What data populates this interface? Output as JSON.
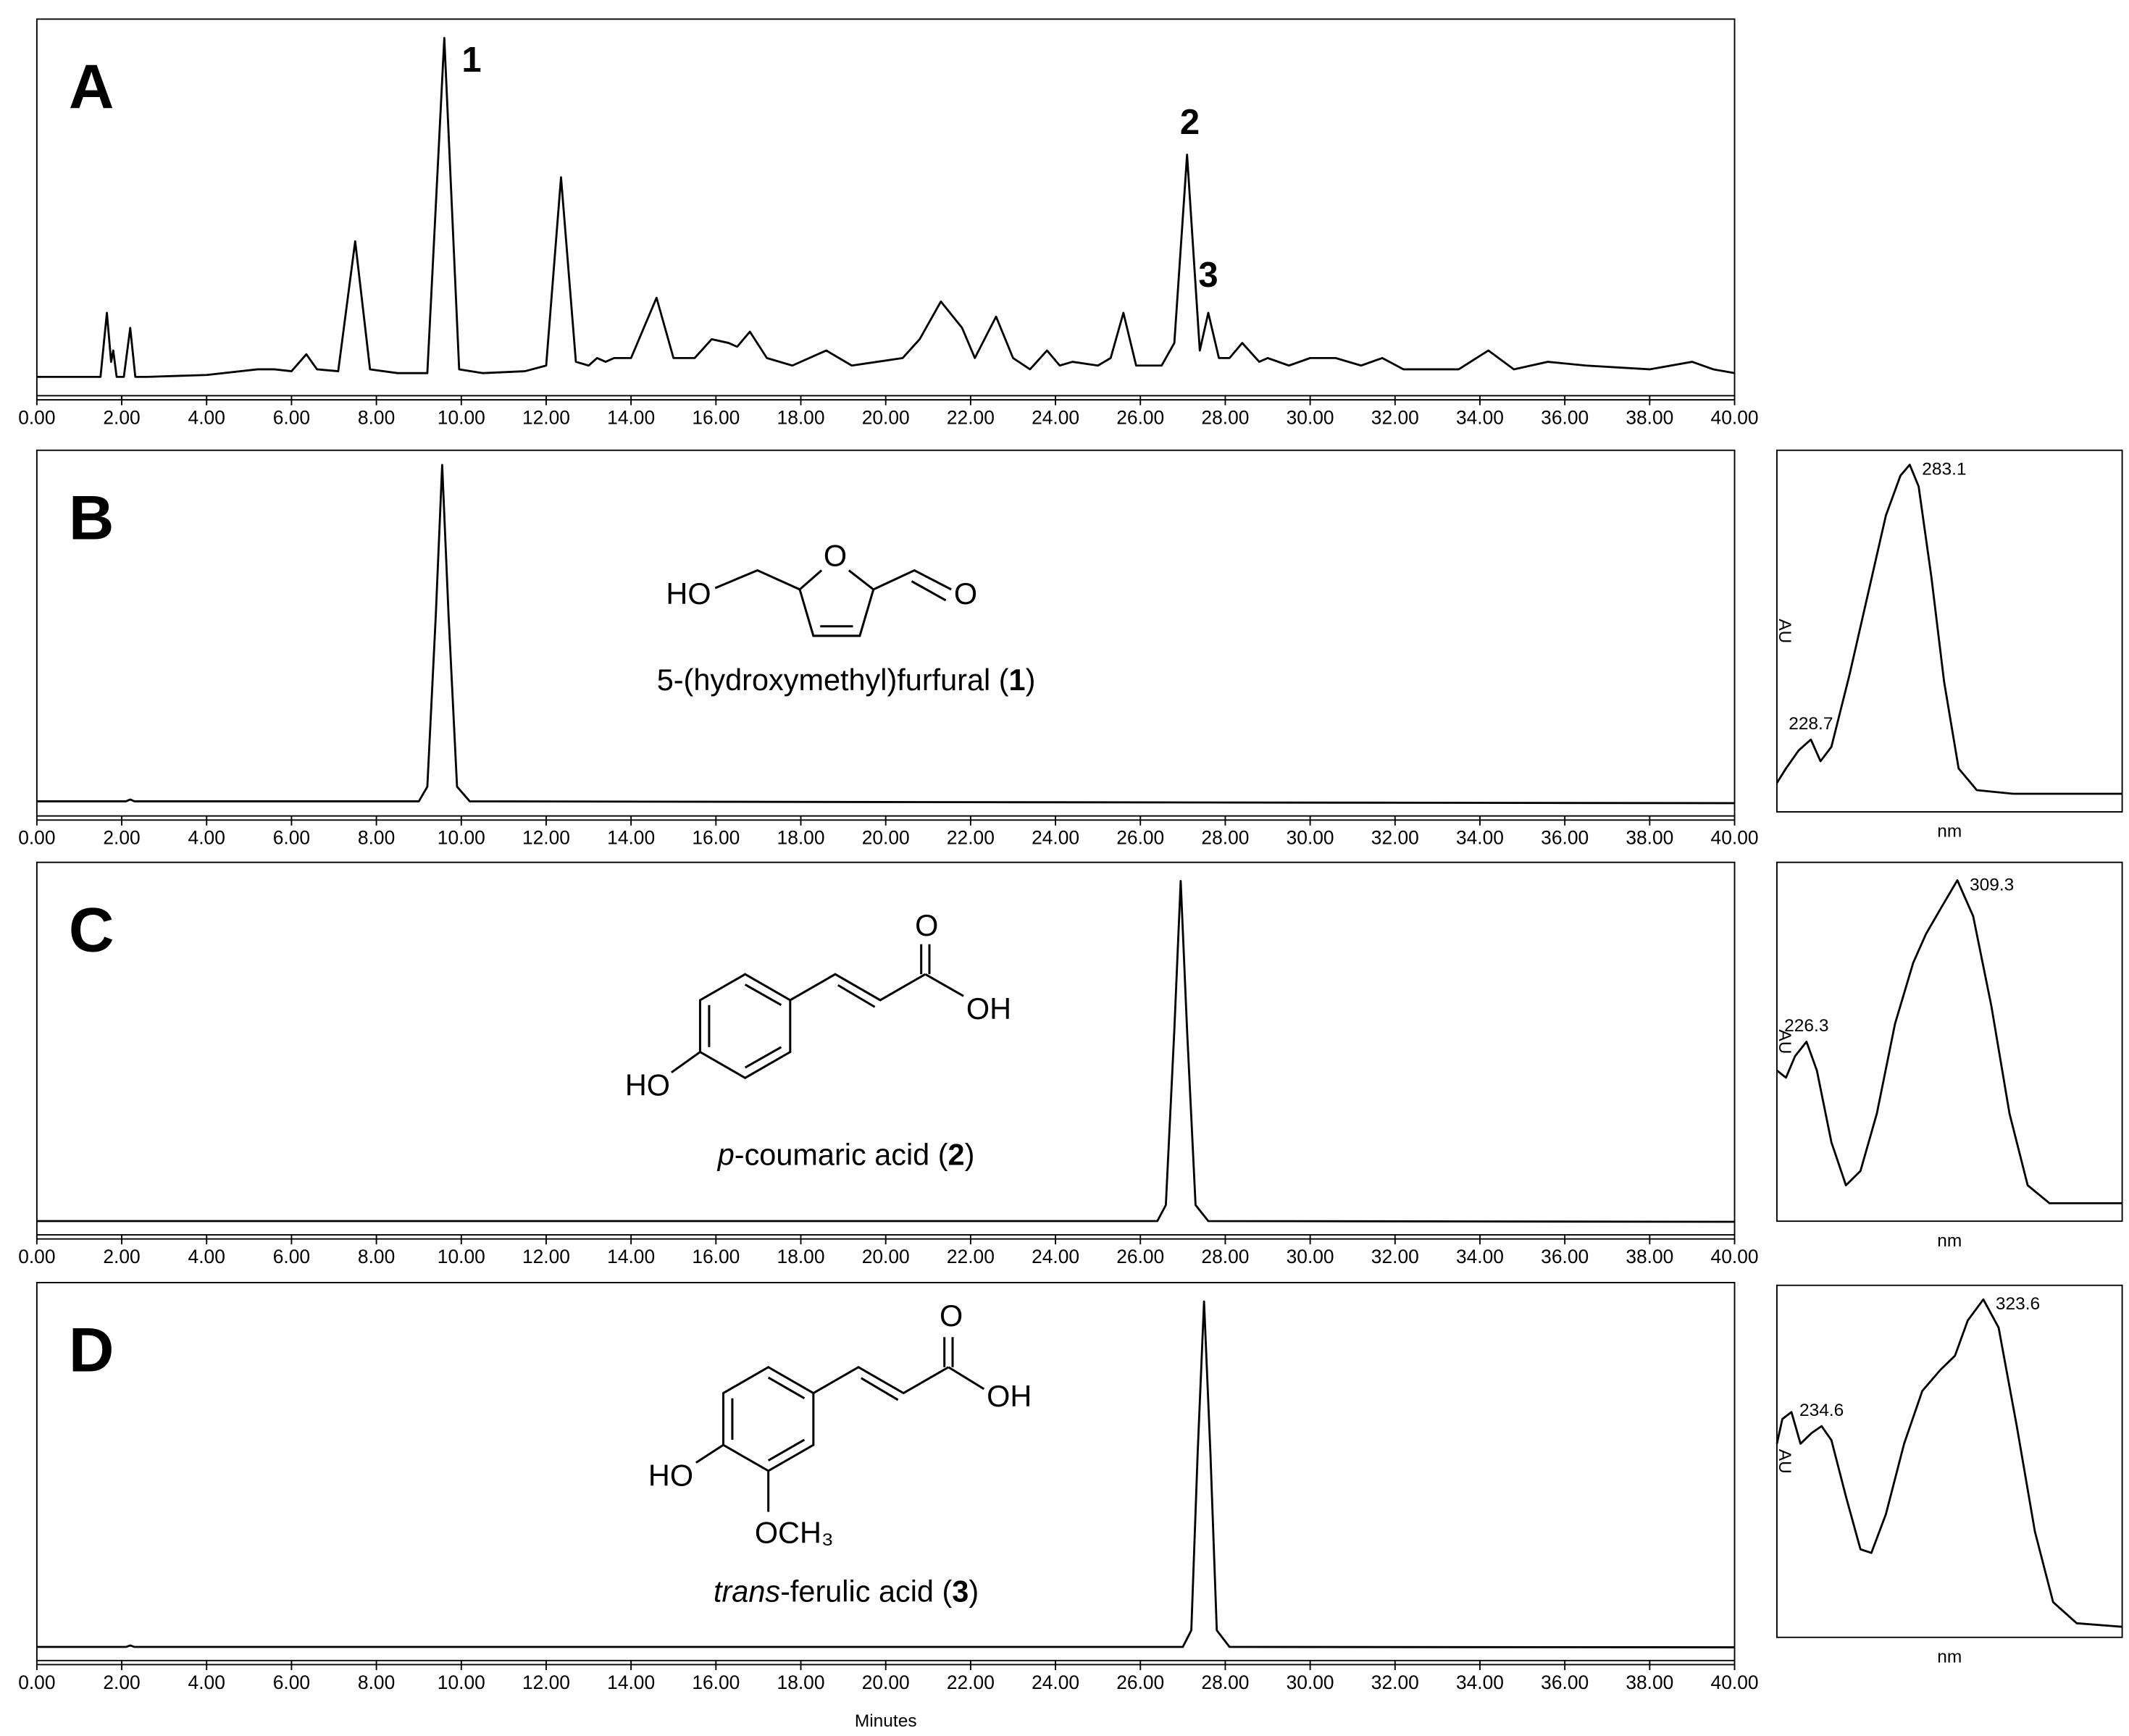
{
  "chart_data": [
    {
      "type": "line",
      "panel": "A",
      "xlim": [
        0,
        40
      ],
      "ylim": [
        0,
        100
      ],
      "xticks": [
        {
          "value": 0,
          "label": "0.00"
        },
        {
          "value": 2,
          "label": "2.00"
        },
        {
          "value": 4,
          "label": "4.00"
        },
        {
          "value": 6,
          "label": "6.00"
        },
        {
          "value": 8,
          "label": "8.00"
        },
        {
          "value": 10,
          "label": "10.00"
        },
        {
          "value": 12,
          "label": "12.00"
        },
        {
          "value": 14,
          "label": "14.00"
        },
        {
          "value": 16,
          "label": "16.00"
        },
        {
          "value": 18,
          "label": "18.00"
        },
        {
          "value": 20,
          "label": "20.00"
        },
        {
          "value": 22,
          "label": "22.00"
        },
        {
          "value": 24,
          "label": "24.00"
        },
        {
          "value": 26,
          "label": "26.00"
        },
        {
          "value": 28,
          "label": "28.00"
        },
        {
          "value": 30,
          "label": "30.00"
        },
        {
          "value": 32,
          "label": "32.00"
        },
        {
          "value": 34,
          "label": "34.00"
        },
        {
          "value": 36,
          "label": "36.00"
        },
        {
          "value": 38,
          "label": "38.00"
        },
        {
          "value": 40,
          "label": "40.00"
        }
      ],
      "x": [
        0,
        1.5,
        1.65,
        1.75,
        1.8,
        1.88,
        2.05,
        2.2,
        2.32,
        2.6,
        4,
        5.2,
        5.6,
        6.0,
        6.35,
        6.6,
        7.1,
        7.5,
        7.85,
        8.5,
        9.2,
        9.6,
        9.95,
        10.5,
        11.5,
        12.0,
        12.35,
        12.7,
        13.0,
        13.2,
        13.4,
        13.6,
        14.0,
        14.6,
        15.0,
        15.5,
        15.9,
        16.3,
        16.5,
        16.8,
        17.2,
        17.8,
        18.6,
        19.2,
        19.8,
        20.4,
        20.8,
        21.3,
        21.8,
        22.1,
        22.6,
        23.0,
        23.4,
        23.8,
        24.1,
        24.4,
        25.0,
        25.3,
        25.6,
        25.9,
        26.5,
        26.8,
        27.1,
        27.4,
        27.6,
        27.85,
        28.1,
        28.4,
        28.8,
        29.0,
        29.5,
        30.0,
        30.6,
        31.2,
        31.7,
        32.2,
        33.5,
        34.2,
        34.8,
        35.6,
        36.5,
        38,
        39.0,
        39.5,
        40
      ],
      "series": [
        {
          "color": "#000000",
          "values": [
            5,
            5,
            22,
            9,
            12,
            5,
            5,
            18,
            5,
            5,
            5.5,
            7,
            7,
            6.5,
            11,
            7,
            6.5,
            41,
            7,
            6,
            6,
            95,
            7,
            6,
            6.5,
            8,
            58,
            9,
            8,
            10,
            9,
            10,
            10,
            26,
            10,
            10,
            15,
            14,
            13,
            17,
            10,
            8,
            12,
            8,
            9,
            10,
            15,
            25,
            18,
            10,
            21,
            10,
            7,
            12,
            8,
            9,
            8,
            10,
            22,
            8,
            8,
            14,
            64,
            12,
            22,
            10,
            10,
            14,
            9,
            10,
            8,
            10,
            10,
            8,
            10,
            7,
            7,
            12,
            7,
            9,
            8,
            7,
            9,
            7,
            6
          ]
        }
      ],
      "peak_labels": [
        {
          "label": "1",
          "x": 9.6,
          "y": 95
        },
        {
          "label": "2",
          "x": 27.1,
          "y": 64
        },
        {
          "label": "3",
          "x": 27.6,
          "y": 22
        }
      ]
    },
    {
      "type": "line",
      "panel": "B",
      "xlim": [
        0,
        40
      ],
      "ylim": [
        0,
        100
      ],
      "xticks": [
        {
          "value": 0,
          "label": "0.00"
        },
        {
          "value": 2,
          "label": "2.00"
        },
        {
          "value": 4,
          "label": "4.00"
        },
        {
          "value": 6,
          "label": "6.00"
        },
        {
          "value": 8,
          "label": "8.00"
        },
        {
          "value": 10,
          "label": "10.00"
        },
        {
          "value": 12,
          "label": "12.00"
        },
        {
          "value": 14,
          "label": "14.00"
        },
        {
          "value": 16,
          "label": "16.00"
        },
        {
          "value": 18,
          "label": "18.00"
        },
        {
          "value": 20,
          "label": "20.00"
        },
        {
          "value": 22,
          "label": "22.00"
        },
        {
          "value": 24,
          "label": "24.00"
        },
        {
          "value": 26,
          "label": "26.00"
        },
        {
          "value": 28,
          "label": "28.00"
        },
        {
          "value": 30,
          "label": "30.00"
        },
        {
          "value": 32,
          "label": "32.00"
        },
        {
          "value": 34,
          "label": "34.00"
        },
        {
          "value": 36,
          "label": "36.00"
        },
        {
          "value": 38,
          "label": "38.00"
        },
        {
          "value": 40,
          "label": "40.00"
        }
      ],
      "x": [
        0,
        2.1,
        2.2,
        2.3,
        9.0,
        9.2,
        9.4,
        9.55,
        9.7,
        9.9,
        10.2,
        20,
        40
      ],
      "series": [
        {
          "color": "#000000",
          "values": [
            4,
            4,
            4.5,
            4,
            4,
            8,
            55,
            96,
            55,
            8,
            4,
            3.8,
            3.5
          ]
        }
      ],
      "structure_labels": [
        "HO",
        "O",
        "O"
      ],
      "compound": {
        "name": "5-(hydroxymethyl)furfural   (",
        "number": "1",
        "close": ")"
      }
    },
    {
      "type": "line",
      "xlabel": "nm",
      "ylabel": "AU",
      "xlim": [
        210,
        400
      ],
      "ylim": [
        0,
        100
      ],
      "x": [
        210,
        215,
        222,
        228.7,
        234,
        240,
        250,
        260,
        270,
        278,
        283.1,
        288,
        295,
        302,
        310,
        320,
        340,
        360,
        400
      ],
      "series": [
        {
          "color": "#000000",
          "values": [
            8,
            12,
            17,
            20,
            14,
            18,
            38,
            60,
            82,
            93,
            96,
            90,
            65,
            36,
            12,
            6,
            5,
            5,
            5
          ]
        }
      ],
      "peak_labels": [
        {
          "x": 228.7,
          "y": 20
        },
        {
          "x": 283.1,
          "y": 96
        }
      ]
    },
    {
      "type": "line",
      "panel": "C",
      "xlim": [
        0,
        40
      ],
      "ylim": [
        0,
        100
      ],
      "xticks": [
        {
          "value": 0,
          "label": "0.00"
        },
        {
          "value": 2,
          "label": "2.00"
        },
        {
          "value": 4,
          "label": "4.00"
        },
        {
          "value": 6,
          "label": "6.00"
        },
        {
          "value": 8,
          "label": "8.00"
        },
        {
          "value": 10,
          "label": "10.00"
        },
        {
          "value": 12,
          "label": "12.00"
        },
        {
          "value": 14,
          "label": "14.00"
        },
        {
          "value": 16,
          "label": "16.00"
        },
        {
          "value": 18,
          "label": "18.00"
        },
        {
          "value": 20,
          "label": "20.00"
        },
        {
          "value": 22,
          "label": "22.00"
        },
        {
          "value": 24,
          "label": "24.00"
        },
        {
          "value": 26,
          "label": "26.00"
        },
        {
          "value": 28,
          "label": "28.00"
        },
        {
          "value": 30,
          "label": "30.00"
        },
        {
          "value": 32,
          "label": "32.00"
        },
        {
          "value": 34,
          "label": "34.00"
        },
        {
          "value": 36,
          "label": "36.00"
        },
        {
          "value": 38,
          "label": "38.00"
        },
        {
          "value": 40,
          "label": "40.00"
        }
      ],
      "x": [
        0,
        26.4,
        26.6,
        26.8,
        26.95,
        27.1,
        27.3,
        27.6,
        40
      ],
      "series": [
        {
          "color": "#000000",
          "values": [
            3.7,
            3.7,
            8,
            55,
            95,
            55,
            8,
            3.7,
            3.5
          ]
        }
      ],
      "structure_labels": [
        "HO",
        "O",
        "OH"
      ],
      "compound": {
        "prefix": "p",
        "name": "-coumaric  acid (",
        "number": "2",
        "close": ")"
      }
    },
    {
      "type": "line",
      "xlabel": "nm",
      "ylabel": "AU",
      "xlim": [
        210,
        400
      ],
      "ylim": [
        0,
        100
      ],
      "x": [
        210,
        215,
        220,
        226.3,
        232,
        240,
        248,
        256,
        265,
        275,
        285,
        292,
        300,
        309.3,
        318,
        328,
        338,
        348,
        360,
        380,
        400
      ],
      "series": [
        {
          "color": "#000000",
          "values": [
            42,
            40,
            46,
            50,
            42,
            22,
            10,
            14,
            30,
            55,
            72,
            80,
            87,
            95,
            85,
            60,
            30,
            10,
            5,
            5,
            5
          ]
        }
      ],
      "peak_labels": [
        {
          "x": 226.3,
          "y": 50
        },
        {
          "x": 309.3,
          "y": 95
        }
      ]
    },
    {
      "type": "line",
      "panel": "D",
      "xlabel": "Minutes",
      "xlim": [
        0,
        40
      ],
      "ylim": [
        0,
        100
      ],
      "xticks": [
        {
          "value": 0,
          "label": "0.00"
        },
        {
          "value": 2,
          "label": "2.00"
        },
        {
          "value": 4,
          "label": "4.00"
        },
        {
          "value": 6,
          "label": "6.00"
        },
        {
          "value": 8,
          "label": "8.00"
        },
        {
          "value": 10,
          "label": "10.00"
        },
        {
          "value": 12,
          "label": "12.00"
        },
        {
          "value": 14,
          "label": "14.00"
        },
        {
          "value": 16,
          "label": "16.00"
        },
        {
          "value": 18,
          "label": "18.00"
        },
        {
          "value": 20,
          "label": "20.00"
        },
        {
          "value": 22,
          "label": "22.00"
        },
        {
          "value": 24,
          "label": "24.00"
        },
        {
          "value": 26,
          "label": "26.00"
        },
        {
          "value": 28,
          "label": "28.00"
        },
        {
          "value": 30,
          "label": "30.00"
        },
        {
          "value": 32,
          "label": "32.00"
        },
        {
          "value": 34,
          "label": "34.00"
        },
        {
          "value": 36,
          "label": "36.00"
        },
        {
          "value": 38,
          "label": "38.00"
        },
        {
          "value": 40,
          "label": "40.00"
        }
      ],
      "x": [
        0,
        2.1,
        2.2,
        2.3,
        27.0,
        27.2,
        27.35,
        27.5,
        27.65,
        27.8,
        28.1,
        40
      ],
      "series": [
        {
          "color": "#000000",
          "values": [
            3.6,
            3.6,
            4,
            3.6,
            3.6,
            8,
            55,
            95,
            55,
            8,
            3.6,
            3.5
          ]
        }
      ],
      "structure_labels": [
        "HO",
        "OCH₃",
        "O",
        "OH"
      ],
      "compound": {
        "prefix": "trans",
        "name": "-ferulic acid (",
        "number": "3",
        "close": ")"
      }
    },
    {
      "type": "line",
      "xlabel": "nm",
      "ylabel": "AU",
      "xlim": [
        210,
        400
      ],
      "ylim": [
        0,
        100
      ],
      "x": [
        210,
        213,
        218,
        223,
        229,
        234.6,
        240,
        248,
        256,
        262,
        270,
        280,
        290,
        300,
        308,
        315,
        323.6,
        332,
        342,
        352,
        362,
        375,
        400
      ],
      "series": [
        {
          "color": "#000000",
          "values": [
            55,
            62,
            64,
            55,
            58,
            60,
            56,
            40,
            25,
            24,
            35,
            55,
            70,
            76,
            80,
            90,
            96,
            88,
            60,
            30,
            10,
            4,
            3
          ]
        }
      ],
      "peak_labels": [
        {
          "x": 234.6,
          "y": 60
        },
        {
          "x": 323.6,
          "y": 96
        }
      ]
    }
  ]
}
